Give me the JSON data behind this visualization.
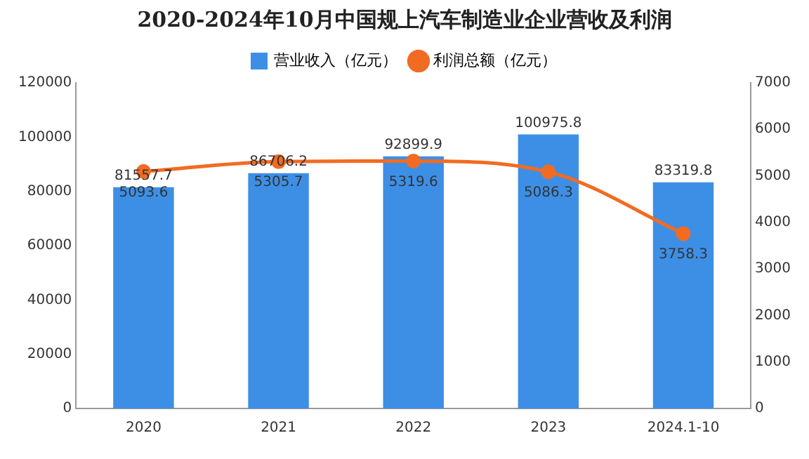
{
  "chart_data": {
    "type": "bar",
    "title": "2020-2024年10月中国规上汽车制造业企业营收及利润",
    "categories": [
      "2020",
      "2021",
      "2022",
      "2023",
      "2024.1-10"
    ],
    "series": [
      {
        "name": "营业收入（亿元）",
        "color": "#3d8fe6",
        "values": [
          81557.7,
          86706.2,
          92899.9,
          100975.8,
          83319.8
        ]
      },
      {
        "name": "利润总额（亿元）",
        "type": "line",
        "axis": "y2",
        "color": "#f26b22",
        "values": [
          5093.6,
          5305.7,
          5319.6,
          5086.3,
          3758.3
        ]
      }
    ],
    "ylim": [
      0,
      120000
    ],
    "yticks": [
      0,
      20000,
      40000,
      60000,
      80000,
      100000,
      120000
    ],
    "y2lim": [
      0,
      7000
    ],
    "y2ticks": [
      0,
      1000,
      2000,
      3000,
      4000,
      5000,
      6000,
      7000
    ],
    "data_labels": true,
    "legend": "top",
    "marker": "circle",
    "grid": false
  }
}
